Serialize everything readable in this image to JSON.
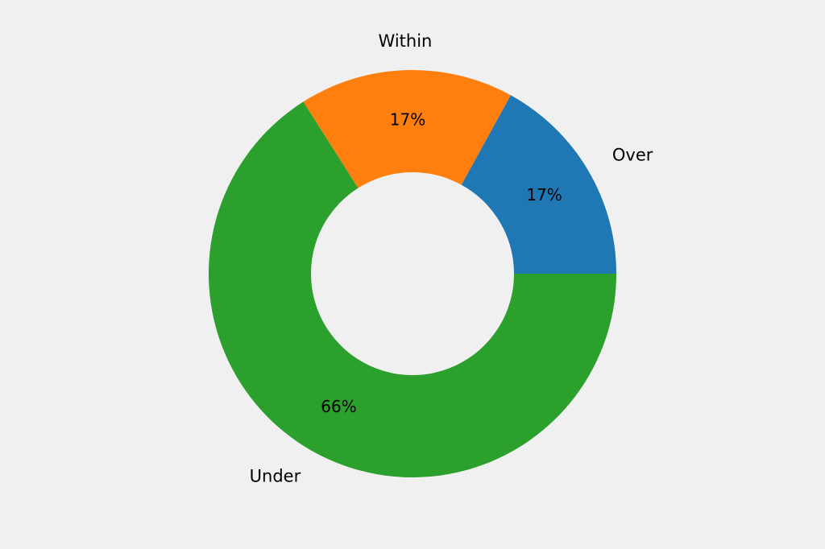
{
  "chart_data": {
    "type": "pie",
    "variant": "donut",
    "slices": [
      {
        "label": "Over",
        "value": 17,
        "pct_text": "17%",
        "color": "#1f77b4"
      },
      {
        "label": "Within",
        "value": 17,
        "pct_text": "17%",
        "color": "#ff7f0e"
      },
      {
        "label": "Under",
        "value": 66,
        "pct_text": "66%",
        "color": "#2ca02c"
      }
    ],
    "start_angle_deg": 0,
    "direction": "counterclockwise",
    "background": "#f0f0f0"
  }
}
